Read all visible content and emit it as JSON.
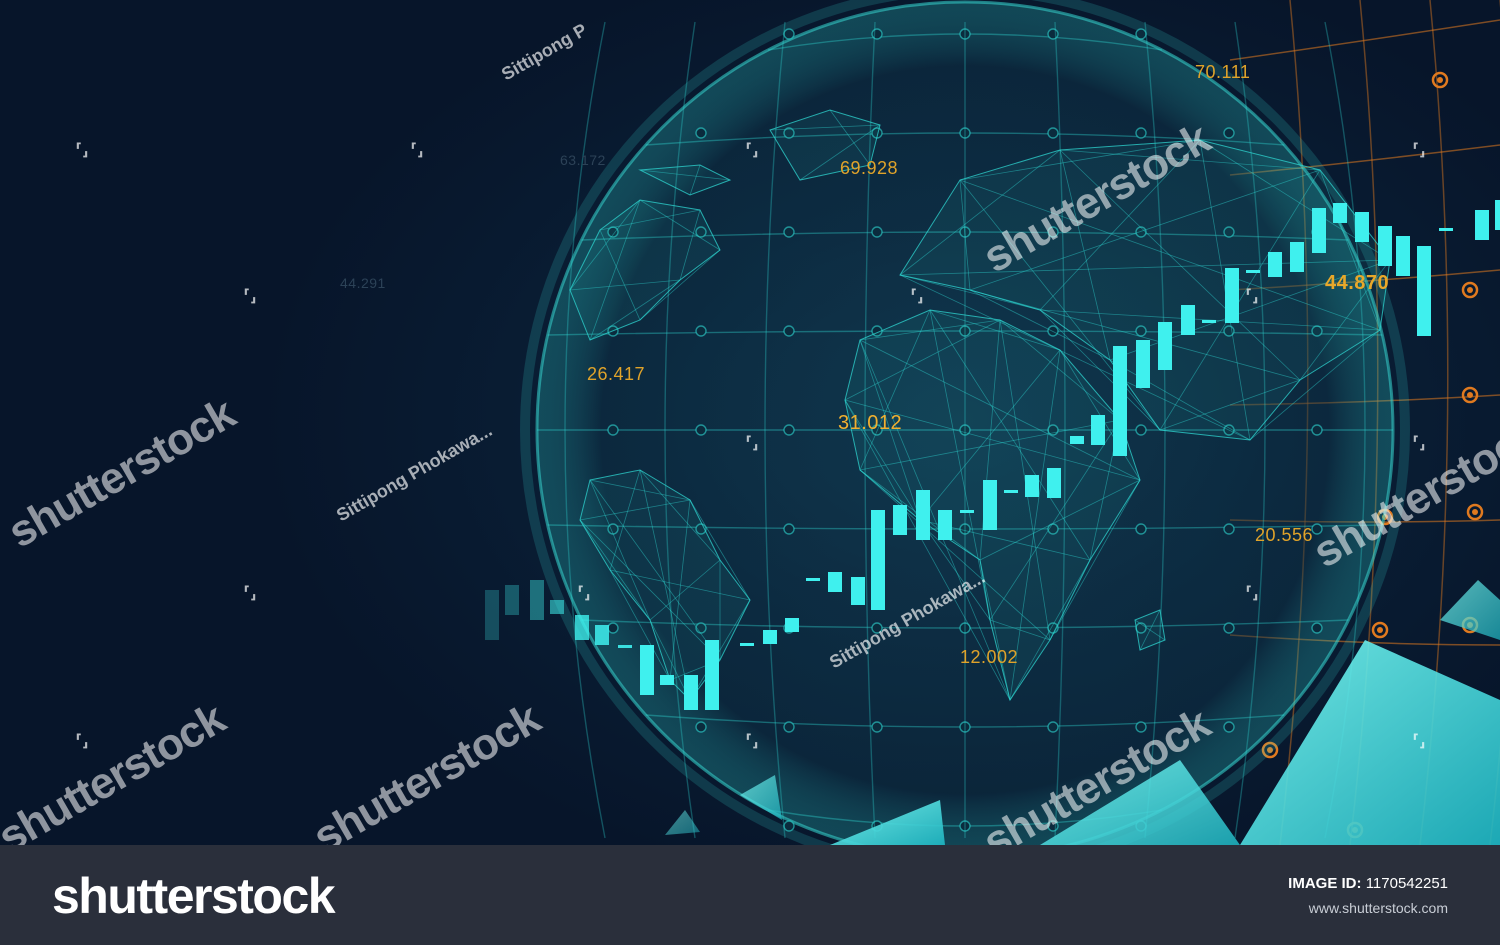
{
  "photo": {
    "numbers": [
      {
        "text": "70.111"
      },
      {
        "text": "69.928"
      },
      {
        "text": "44.870"
      },
      {
        "text": "26.417"
      },
      {
        "text": "31.012"
      },
      {
        "text": "20.556"
      },
      {
        "text": "12.002"
      },
      {
        "text": "44.291"
      },
      {
        "text": "63.172"
      }
    ],
    "watermark_text": "shutterstock",
    "watermark_author": "Sittipong Phokawa...",
    "watermark_author_top": "Sittipong P",
    "colors": {
      "background": "#07152a",
      "globe": "#2fd7d2",
      "candle": "#3ff0ee",
      "orange_grid": "#e07a1f",
      "numbers": "#e0a32a"
    }
  },
  "footer": {
    "logo": "shutterstock",
    "image_id_label": "IMAGE ID:",
    "image_id": "1170542251",
    "url": "www.shutterstock.com"
  }
}
